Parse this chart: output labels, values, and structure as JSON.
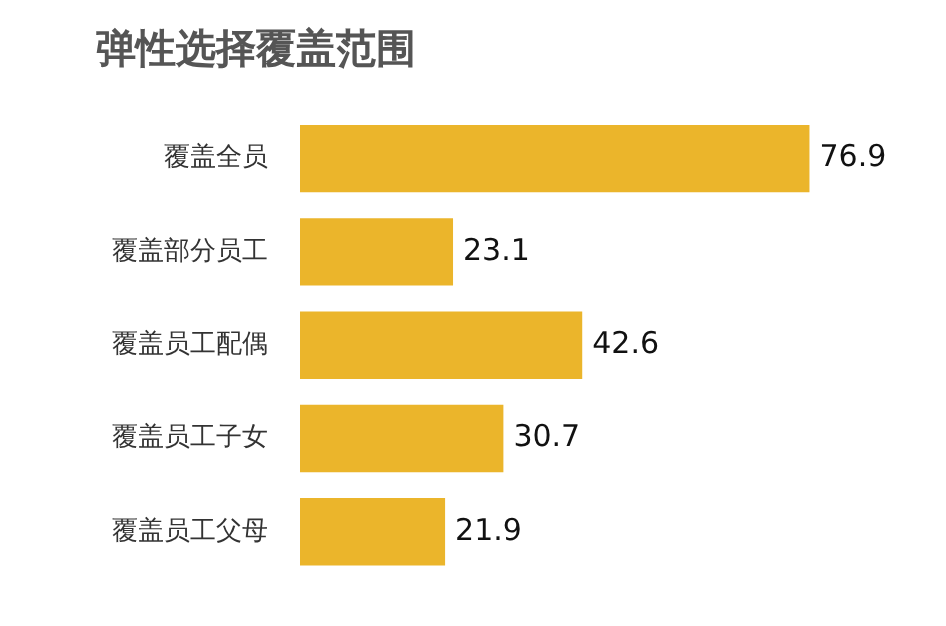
{
  "chart_data": {
    "type": "bar",
    "orientation": "horizontal",
    "title": "弹性选择覆盖范围",
    "categories": [
      "覆盖全员",
      "覆盖部分员工",
      "覆盖员工配偶",
      "覆盖员工子女",
      "覆盖员工父母"
    ],
    "values": [
      76.9,
      23.1,
      42.6,
      30.7,
      21.9
    ],
    "color": "#ebb52b",
    "data_labels": true,
    "grid": false,
    "legend": false
  }
}
